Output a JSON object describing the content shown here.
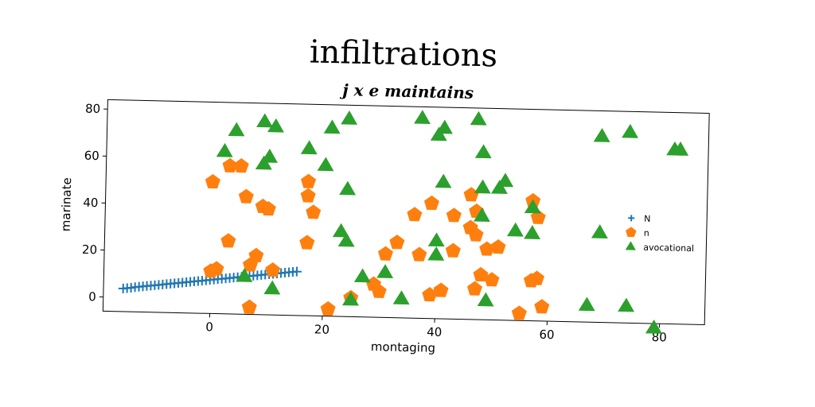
{
  "title": "infiltrations",
  "chart_data": {
    "type": "scatter",
    "title": "j x e maintains",
    "xlabel": "montaging",
    "ylabel": "marinate",
    "xlim": [
      -19,
      88
    ],
    "ylim": [
      -6,
      84
    ],
    "xticks": [
      0,
      20,
      40,
      60,
      80
    ],
    "yticks": [
      0,
      20,
      40,
      60,
      80
    ],
    "grid": false,
    "legend_position": "right",
    "series": [
      {
        "name": "N",
        "marker": "plus",
        "color": "#1f77b4",
        "points": [
          [
            -15.5,
            3.8
          ],
          [
            -14.8,
            4.0
          ],
          [
            -14.1,
            4.2
          ],
          [
            -13.4,
            4.5
          ],
          [
            -12.7,
            4.7
          ],
          [
            -12.0,
            4.9
          ],
          [
            -11.3,
            5.1
          ],
          [
            -10.6,
            5.3
          ],
          [
            -9.9,
            5.5
          ],
          [
            -9.2,
            5.7
          ],
          [
            -8.5,
            5.9
          ],
          [
            -7.8,
            6.1
          ],
          [
            -7.1,
            6.3
          ],
          [
            -6.4,
            6.5
          ],
          [
            -5.7,
            6.7
          ],
          [
            -5.0,
            6.9
          ],
          [
            -4.3,
            7.1
          ],
          [
            -3.6,
            7.3
          ],
          [
            -2.9,
            7.5
          ],
          [
            -2.2,
            7.7
          ],
          [
            -1.5,
            7.9
          ],
          [
            -0.8,
            8.1
          ],
          [
            -0.1,
            8.3
          ],
          [
            0.6,
            8.5
          ],
          [
            1.3,
            8.7
          ],
          [
            2.0,
            8.9
          ],
          [
            2.7,
            9.1
          ],
          [
            3.4,
            9.3
          ],
          [
            4.1,
            9.5
          ],
          [
            4.8,
            9.7
          ],
          [
            5.5,
            9.9
          ],
          [
            6.2,
            10.1
          ],
          [
            6.9,
            10.3
          ],
          [
            7.6,
            10.5
          ],
          [
            8.3,
            10.7
          ],
          [
            9.0,
            10.9
          ],
          [
            9.7,
            11.1
          ],
          [
            10.4,
            11.3
          ],
          [
            11.1,
            11.5
          ],
          [
            11.8,
            11.7
          ],
          [
            12.5,
            11.9
          ],
          [
            13.2,
            12.1
          ],
          [
            13.9,
            12.3
          ],
          [
            14.6,
            12.5
          ],
          [
            15.3,
            12.7
          ]
        ]
      },
      {
        "name": "n",
        "marker": "pentagon",
        "color": "#ff7f0e",
        "points": [
          [
            0,
            50
          ],
          [
            3,
            57
          ],
          [
            5,
            57
          ],
          [
            6,
            44
          ],
          [
            9,
            40
          ],
          [
            10,
            39
          ],
          [
            3,
            25
          ],
          [
            8,
            19
          ],
          [
            7,
            15
          ],
          [
            0,
            12
          ],
          [
            1,
            13
          ],
          [
            11,
            13
          ],
          [
            7,
            -3
          ],
          [
            17,
            51
          ],
          [
            17,
            45
          ],
          [
            18,
            38
          ],
          [
            17,
            25
          ],
          [
            21,
            -3
          ],
          [
            25,
            2
          ],
          [
            29,
            8
          ],
          [
            30,
            5
          ],
          [
            31,
            21
          ],
          [
            33,
            26
          ],
          [
            37,
            21
          ],
          [
            36,
            38
          ],
          [
            39,
            43
          ],
          [
            39,
            4
          ],
          [
            41,
            6
          ],
          [
            43,
            38
          ],
          [
            43,
            23
          ],
          [
            46,
            47
          ],
          [
            47,
            40
          ],
          [
            46,
            33
          ],
          [
            47,
            30
          ],
          [
            48,
            13
          ],
          [
            47,
            7
          ],
          [
            49,
            24
          ],
          [
            50,
            11
          ],
          [
            51,
            25
          ],
          [
            55,
            -3
          ],
          [
            57,
            45
          ],
          [
            57,
            11
          ],
          [
            58,
            38
          ],
          [
            58,
            12
          ],
          [
            59,
            0
          ]
        ]
      },
      {
        "name": "avocational",
        "marker": "triangle",
        "color": "#2ca02c",
        "points": [
          [
            4,
            72
          ],
          [
            9,
            76
          ],
          [
            11,
            74
          ],
          [
            2,
            63
          ],
          [
            10,
            61
          ],
          [
            9,
            58
          ],
          [
            17,
            65
          ],
          [
            21,
            74
          ],
          [
            24,
            78
          ],
          [
            20,
            58
          ],
          [
            6,
            10
          ],
          [
            11,
            5
          ],
          [
            24,
            48
          ],
          [
            23,
            30
          ],
          [
            24,
            26
          ],
          [
            27,
            11
          ],
          [
            31,
            13
          ],
          [
            25,
            1
          ],
          [
            34,
            2
          ],
          [
            37,
            79
          ],
          [
            40,
            72
          ],
          [
            41,
            75
          ],
          [
            41,
            52
          ],
          [
            40,
            27
          ],
          [
            40,
            21
          ],
          [
            47,
            79
          ],
          [
            48,
            65
          ],
          [
            48,
            50
          ],
          [
            48,
            38
          ],
          [
            49,
            2
          ],
          [
            51,
            50
          ],
          [
            52,
            53
          ],
          [
            54,
            32
          ],
          [
            57,
            42
          ],
          [
            57,
            31
          ],
          [
            67,
            1
          ],
          [
            69,
            73
          ],
          [
            74,
            75
          ],
          [
            69,
            32
          ],
          [
            74,
            1
          ],
          [
            79,
            -8
          ],
          [
            82,
            68
          ],
          [
            83,
            68
          ]
        ]
      }
    ]
  }
}
